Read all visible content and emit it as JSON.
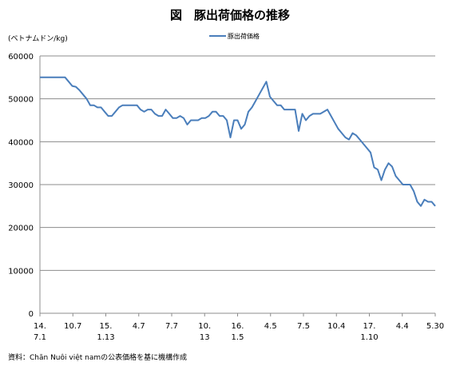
{
  "chart_data": {
    "type": "line",
    "title": "図　豚出荷価格の推移",
    "ylabel": "(ベトナムドン/kg)",
    "source": "資料：Chăn Nuôi việt namの公表価格を基に機構作成",
    "ylim": [
      0,
      60000
    ],
    "yticks": [
      "0",
      "10000",
      "20000",
      "30000",
      "40000",
      "50000",
      "60000"
    ],
    "grid": true,
    "legend_position": "top-center",
    "xticks": [
      {
        "line1": "14.",
        "line2": "7.1"
      },
      {
        "line1": "10.7",
        "line2": ""
      },
      {
        "line1": "15.",
        "line2": "1.13"
      },
      {
        "line1": "4.7",
        "line2": ""
      },
      {
        "line1": "7.7",
        "line2": ""
      },
      {
        "line1": "10.",
        "line2": "13"
      },
      {
        "line1": "16.",
        "line2": "1.5"
      },
      {
        "line1": "4.5",
        "line2": ""
      },
      {
        "line1": "7.5",
        "line2": ""
      },
      {
        "line1": "10.4",
        "line2": ""
      },
      {
        "line1": "17.",
        "line2": "1.10"
      },
      {
        "line1": "4.4",
        "line2": ""
      },
      {
        "line1": "5.30",
        "line2": ""
      }
    ],
    "series": [
      {
        "name": "豚出荷価格",
        "color": "#4a7ebb",
        "values": [
          55000,
          55000,
          55000,
          55000,
          55000,
          55000,
          55000,
          55000,
          54000,
          53000,
          52800,
          52000,
          51000,
          50000,
          48500,
          48500,
          48000,
          48000,
          47000,
          46000,
          46000,
          47000,
          48000,
          48500,
          48500,
          48500,
          48500,
          48500,
          47500,
          47000,
          47500,
          47500,
          46500,
          46000,
          46000,
          47500,
          46500,
          45500,
          45500,
          46000,
          45500,
          44000,
          45000,
          45000,
          45000,
          45500,
          45500,
          46000,
          47000,
          47000,
          46000,
          46000,
          45000,
          41000,
          45000,
          45000,
          43000,
          44000,
          47000,
          48000,
          49500,
          51000,
          52500,
          54000,
          50500,
          49500,
          48500,
          48500,
          47500,
          47500,
          47500,
          47500,
          42500,
          46500,
          45000,
          46000,
          46500,
          46500,
          46500,
          47000,
          47500,
          46000,
          44500,
          43000,
          42000,
          41000,
          40500,
          42000,
          41500,
          40500,
          39500,
          38500,
          37500,
          34000,
          33500,
          31000,
          33500,
          35000,
          34200,
          32000,
          31000,
          30000,
          30000,
          30000,
          28500,
          26000,
          25000,
          26500,
          26000,
          26000,
          25000
        ]
      }
    ]
  }
}
